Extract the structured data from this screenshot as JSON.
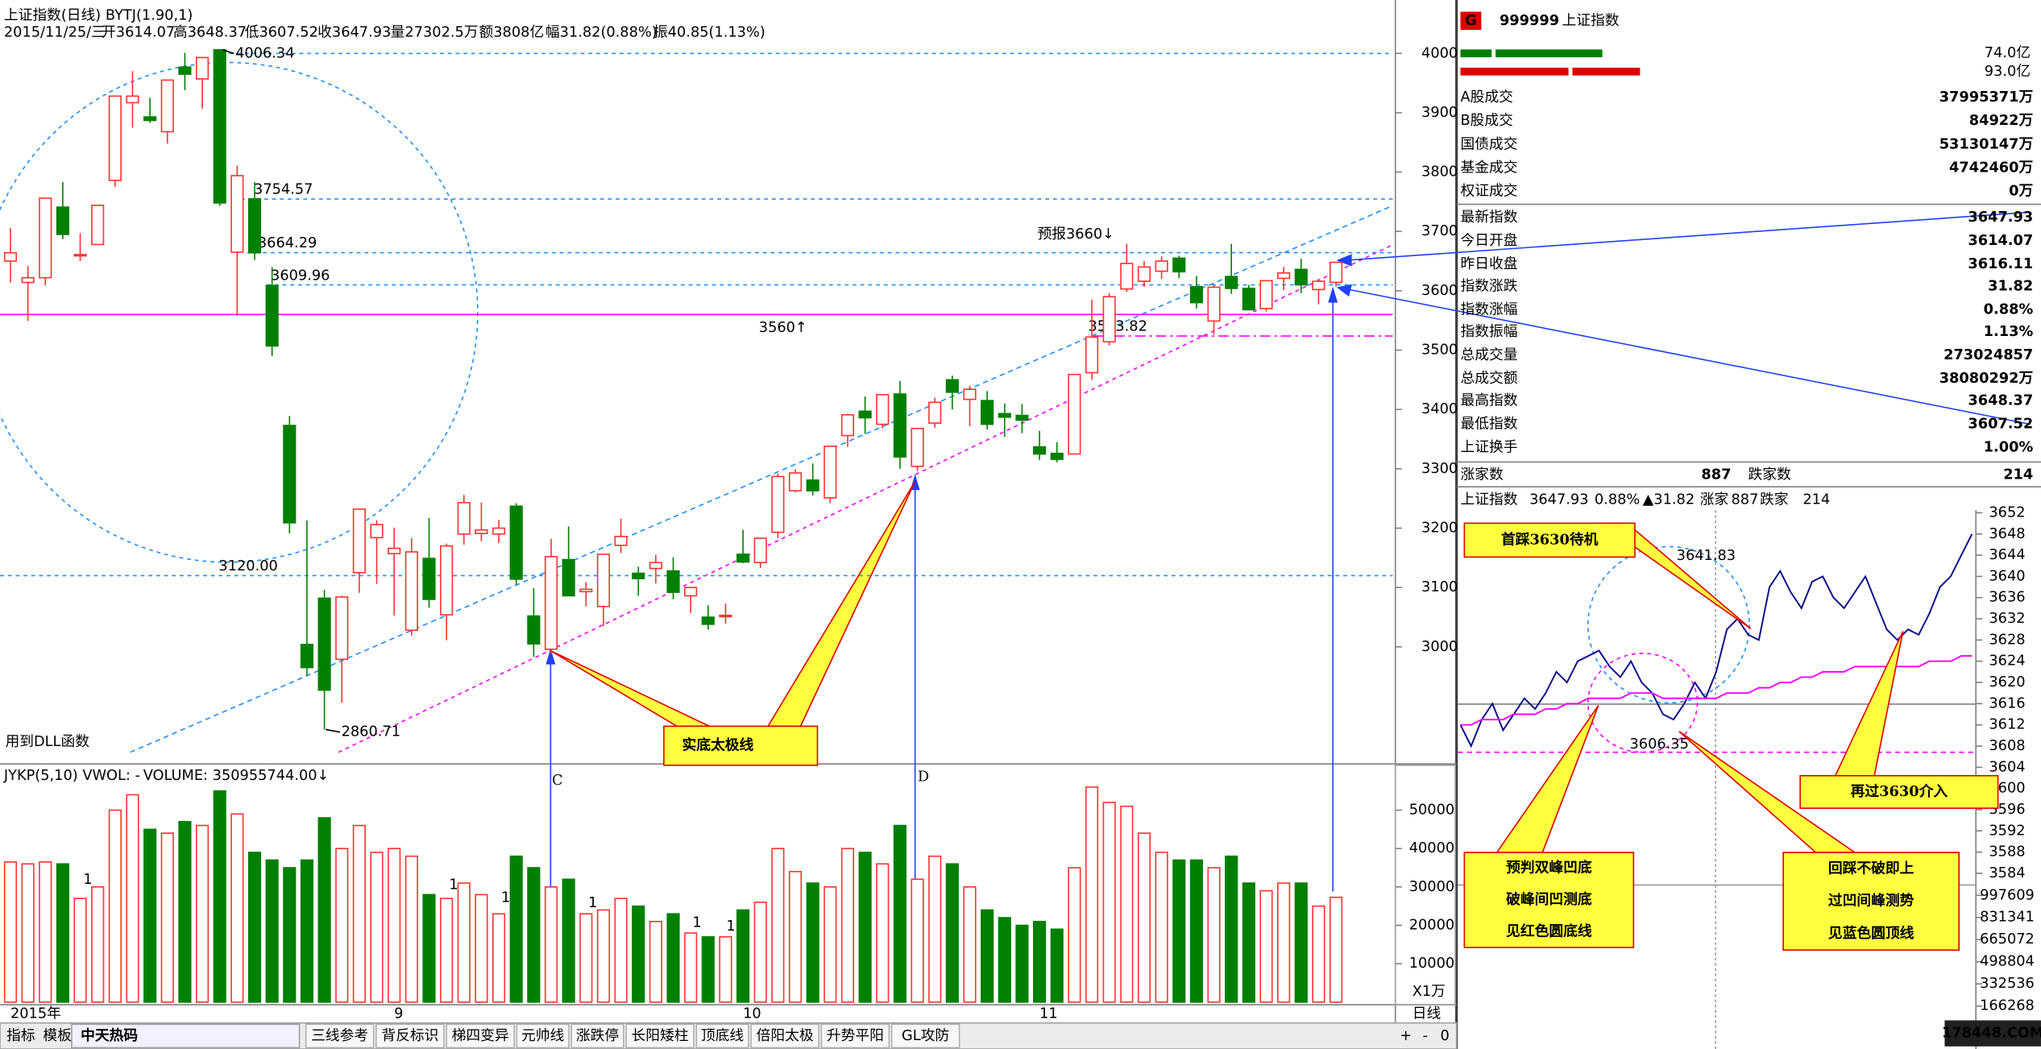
{
  "header": {
    "title": "上证指数(日线) BYTJ(1.90,1)",
    "items": [
      "2015/11/25/三",
      "开3614.07",
      "高3648.37",
      "低3607.52",
      "收3647.93",
      "量27302.5万",
      "额3808亿",
      "幅31.82(0.88%)",
      "振40.85(1.13%)"
    ]
  },
  "chart_data": [
    {
      "type": "candlestick",
      "categories": [
        "2015年",
        null,
        null,
        null,
        null,
        null,
        null,
        null,
        null,
        null,
        null,
        null,
        null,
        null,
        null,
        null,
        null,
        null,
        null,
        null,
        null,
        null,
        "9",
        null,
        null,
        null,
        null,
        null,
        null,
        null,
        null,
        null,
        null,
        null,
        null,
        null,
        null,
        null,
        null,
        null,
        null,
        null,
        "10",
        null,
        null,
        null,
        null,
        null,
        null,
        null,
        null,
        null,
        null,
        null,
        null,
        null,
        null,
        null,
        null,
        "11",
        null,
        null,
        null,
        null,
        null,
        null,
        null,
        null,
        null,
        null,
        null,
        null,
        null,
        null,
        null,
        null,
        null
      ],
      "open": [
        3650,
        3614,
        3622,
        3741,
        3660,
        3678,
        3786,
        3917,
        3893,
        3868,
        3977,
        3957,
        4006,
        3665,
        3755,
        3609,
        3373,
        3004,
        3082,
        2979,
        3125,
        3184,
        3157,
        3028,
        3149,
        3054,
        3190,
        3191,
        3190,
        3237,
        3052,
        2996,
        3147,
        3093,
        3068,
        3171,
        3124,
        3132,
        3128,
        3086,
        3050,
        3051,
        3156,
        3142,
        3193,
        3263,
        3281,
        3251,
        3356,
        3397,
        3375,
        3426,
        3304,
        3377,
        3450,
        3417,
        3415,
        3393,
        3390,
        3337,
        3326,
        3325,
        3462,
        3514,
        3603,
        3616,
        3633,
        3655,
        3607,
        3549,
        3624,
        3604,
        3570,
        3621,
        3636,
        3602,
        3614.07
      ],
      "high": [
        3706,
        3642,
        3757,
        3783,
        3697,
        3745,
        3928,
        3970,
        3925,
        3955,
        4001,
        3994,
        4006.34,
        3811,
        3783,
        3640,
        3389,
        3213,
        3096,
        3086,
        3233,
        3213,
        3201,
        3183,
        3217,
        3174,
        3256,
        3243,
        3214,
        3242,
        3099,
        3182,
        3203,
        3109,
        3156,
        3216,
        3135,
        3155,
        3151,
        3101,
        3070,
        3073,
        3197,
        3183,
        3292,
        3299,
        3309,
        3338,
        3393,
        3422,
        3425,
        3448,
        3368,
        3420,
        3457,
        3440,
        3431,
        3410,
        3409,
        3364,
        3345,
        3459,
        3585,
        3596,
        3679,
        3650,
        3658,
        3659,
        3625,
        3610,
        3679,
        3610,
        3617,
        3640,
        3654,
        3620,
        3648.37
      ],
      "low": [
        3614,
        3549,
        3609,
        3687,
        3650,
        3678,
        3775,
        3875,
        3883,
        3848,
        3938,
        3907,
        3743,
        3558,
        3652,
        3490,
        3191,
        2952,
        2860.71,
        2906,
        3091,
        3106,
        3053,
        3019,
        3066,
        3011,
        3172,
        3178,
        3175,
        3105,
        2983,
        2988,
        3086,
        3068,
        3035,
        3158,
        3086,
        3107,
        3080,
        3057,
        3029,
        3039,
        3141,
        3133,
        3183,
        3260,
        3255,
        3242,
        3337,
        3359,
        3368,
        3300,
        3296,
        3369,
        3400,
        3372,
        3366,
        3354,
        3360,
        3315,
        3311,
        3324,
        3450,
        3508,
        3598,
        3607,
        3620,
        3621,
        3570,
        3526,
        3595,
        3567,
        3565,
        3601,
        3596,
        3577,
        3607.52
      ],
      "close": [
        3664,
        3622,
        3756,
        3695,
        3661,
        3744,
        3928,
        3928,
        3887,
        3955,
        3965,
        3993,
        3748,
        3794,
        3664,
        3507,
        3209,
        2965,
        2927,
        3084,
        3232,
        3206,
        3166,
        3160,
        3080,
        3170,
        3243,
        3197,
        3200,
        3114,
        3005,
        3152,
        3086,
        3097,
        3156,
        3186,
        3115,
        3142,
        3092,
        3100,
        3038,
        3053,
        3143,
        3183,
        3287,
        3293,
        3263,
        3338,
        3391,
        3386,
        3425,
        3320,
        3368,
        3412,
        3429,
        3434,
        3375,
        3387,
        3382,
        3325,
        3316,
        3459,
        3522,
        3590,
        3646,
        3640,
        3650,
        3632,
        3580,
        3606,
        3604,
        3568,
        3617,
        3630,
        3610,
        3616,
        3647.93
      ],
      "up_color": "#ff3232",
      "down_color": "#008000",
      "ylim": [
        2807,
        4079
      ],
      "yticks": [
        3000,
        3100,
        3200,
        3300,
        3400,
        3500,
        3600,
        3700,
        3800,
        3900,
        4000
      ],
      "levels": [
        {
          "value": 4000,
          "color": "#1e90ff",
          "style": "dotted"
        },
        {
          "value": 3754.57,
          "color": "#1e90ff",
          "style": "dotted",
          "labeled": true
        },
        {
          "value": 3664.29,
          "color": "#1e90ff",
          "style": "dotted",
          "labeled": true
        },
        {
          "value": 3609.96,
          "color": "#1e90ff",
          "style": "dotted",
          "labeled": true
        },
        {
          "value": 3560,
          "color": "#ff00ff",
          "style": "solid"
        },
        {
          "value": 3523.82,
          "color": "#ff00ff",
          "style": "dashdot",
          "labeled": true
        },
        {
          "value": 3120,
          "label": "3120.00",
          "color": "#1e90ff",
          "style": "dotted"
        }
      ],
      "annotations": [
        "预报3660↓",
        "3560↑",
        "用到DLL函数",
        "实底太极线",
        "C",
        "D"
      ]
    },
    {
      "type": "bar",
      "title": "JYKP(5,10) VWOL: -",
      "subtitle": "VOLUME: 350955744.00↓",
      "unit_label": "X1万",
      "values": [
        36500,
        36000,
        36500,
        36000,
        27000,
        30000,
        50000,
        54000,
        45000,
        44000,
        47000,
        46000,
        55000,
        49000,
        39000,
        37000,
        35000,
        37000,
        48000,
        40000,
        46000,
        39000,
        40000,
        38000,
        28000,
        27000,
        31000,
        28000,
        23000,
        38000,
        35000,
        30000,
        32000,
        23000,
        24000,
        27000,
        25000,
        21000,
        23000,
        18000,
        17000,
        17000,
        24000,
        26000,
        40000,
        34000,
        31000,
        30000,
        40000,
        39000,
        36000,
        46000,
        32000,
        38000,
        36000,
        30000,
        24000,
        22000,
        20000,
        21000,
        19000,
        35000,
        56000,
        52000,
        51000,
        44000,
        39000,
        37000,
        37000,
        35000,
        38000,
        31000,
        29000,
        31000,
        31000,
        25000,
        27302.5
      ],
      "ylim": [
        0,
        61000
      ],
      "yticks": [
        10000,
        20000,
        30000,
        40000,
        50000
      ],
      "signals": [
        "1",
        "1",
        "1",
        "1",
        "1",
        "1"
      ]
    },
    {
      "type": "line",
      "title": "上证指数",
      "header": [
        "3647.93",
        "0.88%",
        "▲31.82",
        "涨家",
        "887",
        "跌家",
        "214"
      ],
      "x": [
        0,
        5,
        10,
        15,
        20,
        25,
        30,
        35,
        40,
        45,
        50,
        55,
        60,
        65,
        70,
        75,
        80,
        85,
        90,
        95,
        100,
        105,
        110,
        115,
        120,
        125,
        130,
        135,
        140,
        145,
        150,
        155,
        160,
        165,
        170,
        175,
        180,
        185,
        190,
        195,
        200,
        205,
        210,
        215,
        220,
        225,
        230,
        235,
        240
      ],
      "xlim": [
        0,
        240
      ],
      "series": [
        {
          "color": "#0a0a8a",
          "values": [
            3612,
            3608,
            3613,
            3616,
            3611,
            3614,
            3617,
            3615,
            3618,
            3622,
            3620,
            3624,
            3625,
            3626,
            3623,
            3621,
            3624,
            3620,
            3618,
            3614,
            3613,
            3616,
            3620,
            3617,
            3622,
            3630,
            3632,
            3629,
            3628,
            3638,
            3641,
            3637,
            3634,
            3639,
            3640,
            3636,
            3634,
            3637,
            3640,
            3635,
            3630,
            3628,
            3630,
            3629,
            3633,
            3638,
            3640,
            3644,
            3648
          ]
        },
        {
          "color": "#ff00ff",
          "values": [
            3612,
            3612,
            3613,
            3613,
            3613,
            3614,
            3614,
            3614,
            3615,
            3615,
            3616,
            3616,
            3617,
            3617,
            3617,
            3617,
            3618,
            3618,
            3618,
            3617,
            3617,
            3617,
            3617,
            3617,
            3617,
            3618,
            3618,
            3618,
            3619,
            3619,
            3620,
            3620,
            3621,
            3621,
            3622,
            3622,
            3622,
            3623,
            3623,
            3623,
            3623,
            3623,
            3623,
            3623,
            3624,
            3624,
            3624,
            3625,
            3625
          ]
        }
      ],
      "ylim": [
        3584,
        3652
      ],
      "yticks": [
        3584,
        3588,
        3592,
        3596,
        3600,
        3604,
        3608,
        3612,
        3616,
        3620,
        3624,
        3628,
        3632,
        3636,
        3640,
        3644,
        3648,
        3652
      ],
      "y2lim": [
        0,
        1075000
      ],
      "y2ticks": [
        166268,
        332536,
        498804,
        665072,
        831341,
        997609
      ],
      "labels": [
        "3641.83",
        "3606.35"
      ],
      "annotations": [
        {
          "lines": [
            "首踩3630待机"
          ]
        },
        {
          "lines": [
            "预判双峰凹底",
            "破峰间凹测底",
            "见红色圆底线"
          ]
        },
        {
          "lines": [
            "回踩不破即上",
            "过凹间峰测势",
            "见蓝色圆顶线"
          ]
        },
        {
          "lines": [
            "再过3630介入"
          ]
        }
      ]
    }
  ],
  "side_panel": {
    "badge": "G",
    "code": "999999",
    "name": "上证指数",
    "bar_values": [
      "74.0亿",
      "93.0亿"
    ],
    "rows": [
      {
        "label": "A股成交",
        "value": "37995371万",
        "color": "#e05000"
      },
      {
        "label": "B股成交",
        "value": "84922万",
        "color": "#e05000"
      },
      {
        "label": "国债成交",
        "value": "53130147万",
        "color": "#e05000"
      },
      {
        "label": "基金成交",
        "value": "4742460万",
        "color": "#e05000"
      },
      {
        "label": "权证成交",
        "value": "0万",
        "color": "#e05000"
      },
      {
        "label": "最新指数",
        "value": "3647.93",
        "color": "#ff0000"
      },
      {
        "label": "今日开盘",
        "value": "3614.07",
        "color": "#008000"
      },
      {
        "label": "昨日收盘",
        "value": "3616.11",
        "color": "#000000"
      },
      {
        "label": "指数涨跌",
        "value": "31.82",
        "color": "#ff0000"
      },
      {
        "label": "指数涨幅",
        "value": "0.88%",
        "color": "#ff0000"
      },
      {
        "label": "指数振幅",
        "value": "1.13%",
        "color": "#000000"
      },
      {
        "label": "总成交量",
        "value": "273024857",
        "color": "#ff0000"
      },
      {
        "label": "总成交额",
        "value": "38080292万",
        "color": "#e05000"
      },
      {
        "label": "最高指数",
        "value": "3648.37",
        "color": "#ff0000"
      },
      {
        "label": "最低指数",
        "value": "3607.52",
        "color": "#008000"
      },
      {
        "label": "上证换手",
        "value": "1.00%",
        "color": "#000000"
      }
    ],
    "breadth": {
      "up_label": "涨家数",
      "up": "887",
      "down_label": "跌家数",
      "down": "214"
    }
  },
  "footer": {
    "period": "日线",
    "buttons": [
      "+",
      "-",
      "0"
    ],
    "tabs": [
      "指标",
      "模板"
    ],
    "logo": "中天热码",
    "indicator_tabs": [
      "三线参考",
      "背反标识",
      "梯四变异",
      "元帅线",
      "涨跌停",
      "长阳矮柱",
      "顶底线",
      "倍阳太极",
      "升势平阳",
      "GL攻防"
    ],
    "watermark": "178448.COM"
  }
}
